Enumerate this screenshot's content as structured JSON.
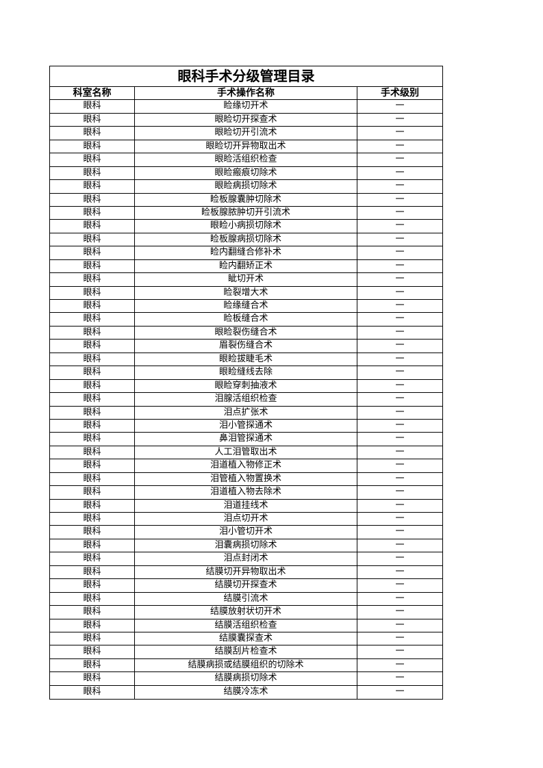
{
  "title": "眼科手术分级管理目录",
  "headers": {
    "department": "科室名称",
    "procedure": "手术操作名称",
    "grade": "手术级别"
  },
  "rows": [
    {
      "department": "眼科",
      "procedure": "睑缘切开术",
      "grade": "一"
    },
    {
      "department": "眼科",
      "procedure": "眼睑切开探查术",
      "grade": "一"
    },
    {
      "department": "眼科",
      "procedure": "眼睑切开引流术",
      "grade": "一"
    },
    {
      "department": "眼科",
      "procedure": "眼睑切开异物取出术",
      "grade": "一"
    },
    {
      "department": "眼科",
      "procedure": "眼睑活组织检查",
      "grade": "一"
    },
    {
      "department": "眼科",
      "procedure": "眼睑瘢痕切除术",
      "grade": "一"
    },
    {
      "department": "眼科",
      "procedure": "眼睑病损切除术",
      "grade": "一"
    },
    {
      "department": "眼科",
      "procedure": "睑板腺囊肿切除术",
      "grade": "一"
    },
    {
      "department": "眼科",
      "procedure": "睑板腺脓肿切开引流术",
      "grade": "一"
    },
    {
      "department": "眼科",
      "procedure": "眼睑小病损切除术",
      "grade": "一"
    },
    {
      "department": "眼科",
      "procedure": "睑板腺病损切除术",
      "grade": "一"
    },
    {
      "department": "眼科",
      "procedure": "睑内翻缝合修补术",
      "grade": "一"
    },
    {
      "department": "眼科",
      "procedure": "睑内翻矫正术",
      "grade": "一"
    },
    {
      "department": "眼科",
      "procedure": "眦切开术",
      "grade": "一"
    },
    {
      "department": "眼科",
      "procedure": "睑裂增大术",
      "grade": "一"
    },
    {
      "department": "眼科",
      "procedure": "睑缘缝合术",
      "grade": "一"
    },
    {
      "department": "眼科",
      "procedure": "睑板缝合术",
      "grade": "一"
    },
    {
      "department": "眼科",
      "procedure": "眼睑裂伤缝合术",
      "grade": "一"
    },
    {
      "department": "眼科",
      "procedure": "眉裂伤缝合术",
      "grade": "一"
    },
    {
      "department": "眼科",
      "procedure": "眼睑拔睫毛术",
      "grade": "一"
    },
    {
      "department": "眼科",
      "procedure": "眼睑缝线去除",
      "grade": "一"
    },
    {
      "department": "眼科",
      "procedure": "眼睑穿刺抽液术",
      "grade": "一"
    },
    {
      "department": "眼科",
      "procedure": "泪腺活组织检查",
      "grade": "一"
    },
    {
      "department": "眼科",
      "procedure": "泪点扩张术",
      "grade": "一"
    },
    {
      "department": "眼科",
      "procedure": "泪小管探通术",
      "grade": "一"
    },
    {
      "department": "眼科",
      "procedure": "鼻泪管探通术",
      "grade": "一"
    },
    {
      "department": "眼科",
      "procedure": "人工泪管取出术",
      "grade": "一"
    },
    {
      "department": "眼科",
      "procedure": "泪道植入物修正术",
      "grade": "一"
    },
    {
      "department": "眼科",
      "procedure": "泪管植入物置换术",
      "grade": "一"
    },
    {
      "department": "眼科",
      "procedure": "泪道植入物去除术",
      "grade": "一"
    },
    {
      "department": "眼科",
      "procedure": "泪道挂线术",
      "grade": "一"
    },
    {
      "department": "眼科",
      "procedure": "泪点切开术",
      "grade": "一"
    },
    {
      "department": "眼科",
      "procedure": "泪小管切开术",
      "grade": "一"
    },
    {
      "department": "眼科",
      "procedure": "泪囊病损切除术",
      "grade": "一"
    },
    {
      "department": "眼科",
      "procedure": "泪点封闭术",
      "grade": "一"
    },
    {
      "department": "眼科",
      "procedure": "结膜切开异物取出术",
      "grade": "一"
    },
    {
      "department": "眼科",
      "procedure": "结膜切开探查术",
      "grade": "一"
    },
    {
      "department": "眼科",
      "procedure": "结膜引流术",
      "grade": "一"
    },
    {
      "department": "眼科",
      "procedure": "结膜放射状切开术",
      "grade": "一"
    },
    {
      "department": "眼科",
      "procedure": "结膜活组织检查",
      "grade": "一"
    },
    {
      "department": "眼科",
      "procedure": "结膜囊探查术",
      "grade": "一"
    },
    {
      "department": "眼科",
      "procedure": "结膜刮片检查术",
      "grade": "一"
    },
    {
      "department": "眼科",
      "procedure": "结膜病损或结膜组织的切除术",
      "grade": "一"
    },
    {
      "department": "眼科",
      "procedure": "结膜病损切除术",
      "grade": "一"
    },
    {
      "department": "眼科",
      "procedure": "结膜冷冻术",
      "grade": "一"
    }
  ]
}
